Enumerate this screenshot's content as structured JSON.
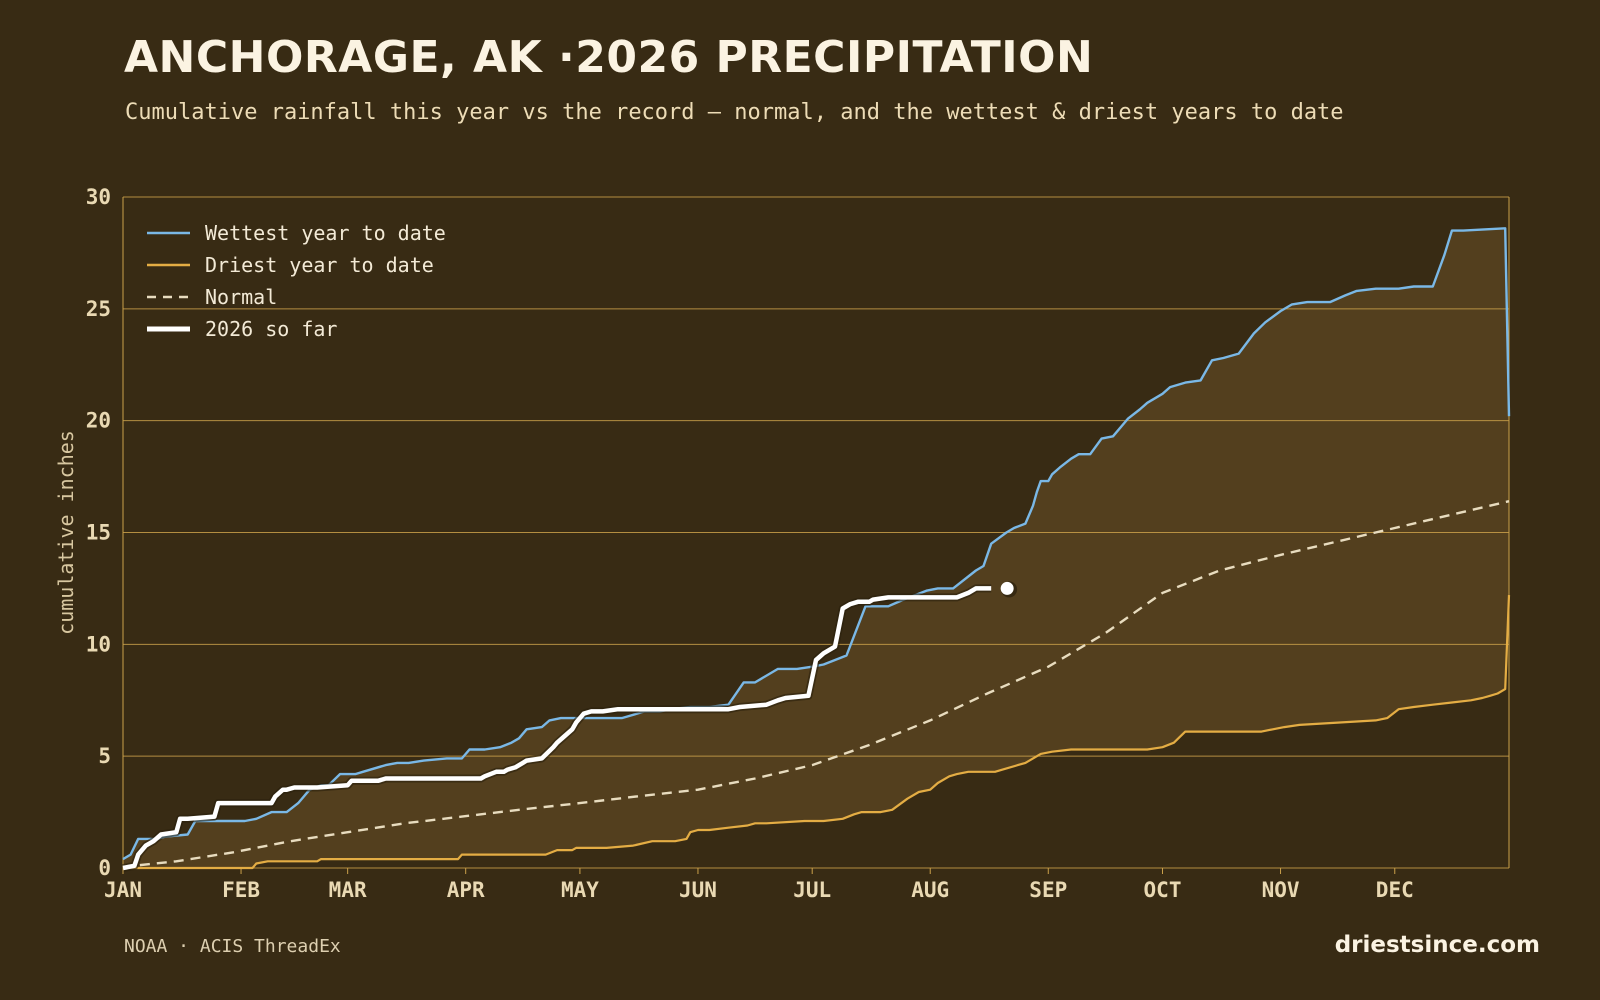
{
  "header": {
    "title": "ANCHORAGE, AK ·2026 PRECIPITATION",
    "subtitle": "Cumulative rainfall this year vs the record — normal, and the wettest & driest years to date"
  },
  "footer": {
    "source": "NOAA · ACIS ThreadEx",
    "brand": "driestsince.com"
  },
  "colors": {
    "background": "#382b14",
    "band_fill": "#533f1e",
    "grid": "#caa04a",
    "wettest": "#7ab8e6",
    "driest": "#e4ad44",
    "normal": "#e8dcbf",
    "current": "#ffffff"
  },
  "chart_data": {
    "type": "line",
    "title": "ANCHORAGE, AK ·2026 PRECIPITATION",
    "subtitle": "Cumulative rainfall this year vs the record — normal, and the wettest & driest years to date",
    "xlabel": "",
    "ylabel": "cumulative inches",
    "x_unit": "day of year",
    "xlim": [
      1,
      365
    ],
    "ylim": [
      0,
      30
    ],
    "yticks": [
      0,
      5,
      10,
      15,
      20,
      25,
      30
    ],
    "month_ticks": [
      {
        "label": "JAN",
        "day": 1
      },
      {
        "label": "FEB",
        "day": 32
      },
      {
        "label": "MAR",
        "day": 60
      },
      {
        "label": "APR",
        "day": 91
      },
      {
        "label": "MAY",
        "day": 121
      },
      {
        "label": "JUN",
        "day": 152
      },
      {
        "label": "JUL",
        "day": 182
      },
      {
        "label": "AUG",
        "day": 213
      },
      {
        "label": "SEP",
        "day": 244
      },
      {
        "label": "OCT",
        "day": 274
      },
      {
        "label": "NOV",
        "day": 305
      },
      {
        "label": "DEC",
        "day": 335
      }
    ],
    "grid": true,
    "legend_position": "top-left",
    "series": [
      {
        "name": "Wettest year to date",
        "style": "solid",
        "x": [
          1,
          3,
          5,
          10,
          12,
          18,
          20,
          24,
          28,
          33,
          36,
          40,
          44,
          47,
          50,
          53,
          55,
          58,
          60,
          62,
          64,
          70,
          73,
          76,
          80,
          86,
          90,
          92,
          96,
          100,
          103,
          105,
          107,
          111,
          113,
          116,
          121,
          125,
          132,
          138,
          142,
          145,
          150,
          155,
          160,
          164,
          167,
          170,
          173,
          178,
          182,
          185,
          191,
          196,
          198,
          202,
          206,
          212,
          215,
          219,
          225,
          227,
          229,
          233,
          235,
          238,
          240,
          241,
          242,
          244,
          245,
          247,
          250,
          252,
          255,
          258,
          261,
          265,
          268,
          270,
          272,
          274,
          276,
          280,
          284,
          287,
          290,
          294,
          298,
          301,
          305,
          308,
          312,
          318,
          322,
          325,
          330,
          336,
          340,
          345,
          348,
          350,
          353,
          364,
          365
        ],
        "y": [
          0.4,
          0.6,
          1.3,
          1.3,
          1.4,
          1.5,
          2.1,
          2.1,
          2.1,
          2.1,
          2.2,
          2.5,
          2.5,
          2.9,
          3.5,
          3.7,
          3.7,
          4.2,
          4.2,
          4.2,
          4.3,
          4.6,
          4.7,
          4.7,
          4.8,
          4.9,
          4.9,
          5.3,
          5.3,
          5.4,
          5.6,
          5.8,
          6.2,
          6.3,
          6.6,
          6.7,
          6.7,
          6.7,
          6.7,
          7.0,
          7.0,
          7.1,
          7.2,
          7.2,
          7.3,
          8.3,
          8.3,
          8.6,
          8.9,
          8.9,
          9.0,
          9.1,
          9.5,
          11.7,
          11.7,
          11.7,
          12.0,
          12.4,
          12.5,
          12.5,
          13.3,
          13.5,
          14.5,
          15.0,
          15.2,
          15.4,
          16.2,
          16.8,
          17.3,
          17.3,
          17.6,
          17.9,
          18.3,
          18.5,
          18.5,
          19.2,
          19.3,
          20.1,
          20.5,
          20.8,
          21.0,
          21.2,
          21.5,
          21.7,
          21.8,
          22.7,
          22.8,
          23.0,
          23.9,
          24.4,
          24.9,
          25.2,
          25.3,
          25.3,
          25.6,
          25.8,
          25.9,
          25.9,
          26.0,
          26.0,
          27.4,
          28.5,
          28.5,
          28.6,
          20.2
        ]
      },
      {
        "name": "Driest year to date",
        "style": "solid",
        "x": [
          1,
          35,
          36,
          39,
          52,
          53,
          70,
          89,
          90,
          92,
          100,
          103,
          112,
          115,
          119,
          120,
          122,
          128,
          135,
          140,
          146,
          149,
          150,
          152,
          155,
          160,
          165,
          167,
          170,
          180,
          185,
          190,
          193,
          195,
          200,
          203,
          207,
          210,
          213,
          215,
          218,
          220,
          223,
          226,
          230,
          232,
          236,
          238,
          242,
          245,
          250,
          260,
          270,
          274,
          277,
          280,
          282,
          290,
          300,
          303,
          306,
          310,
          320,
          330,
          333,
          336,
          340,
          345,
          350,
          355,
          358,
          360,
          362,
          364,
          365
        ],
        "y": [
          0.0,
          0.0,
          0.2,
          0.3,
          0.3,
          0.4,
          0.4,
          0.4,
          0.6,
          0.6,
          0.6,
          0.6,
          0.6,
          0.8,
          0.8,
          0.9,
          0.9,
          0.9,
          1.0,
          1.2,
          1.2,
          1.3,
          1.6,
          1.7,
          1.7,
          1.8,
          1.9,
          2.0,
          2.0,
          2.1,
          2.1,
          2.2,
          2.4,
          2.5,
          2.5,
          2.6,
          3.1,
          3.4,
          3.5,
          3.8,
          4.1,
          4.2,
          4.3,
          4.3,
          4.3,
          4.4,
          4.6,
          4.7,
          5.1,
          5.2,
          5.3,
          5.3,
          5.3,
          5.4,
          5.6,
          6.1,
          6.1,
          6.1,
          6.1,
          6.2,
          6.3,
          6.4,
          6.5,
          6.6,
          6.7,
          7.1,
          7.2,
          7.3,
          7.4,
          7.5,
          7.6,
          7.7,
          7.8,
          8.0,
          12.2
        ]
      },
      {
        "name": "Normal",
        "style": "dashed",
        "x": [
          1,
          15,
          30,
          45,
          60,
          75,
          90,
          105,
          121,
          136,
          152,
          167,
          182,
          197,
          213,
          228,
          244,
          259,
          274,
          289,
          305,
          320,
          335,
          350,
          365
        ],
        "y": [
          0.05,
          0.3,
          0.7,
          1.2,
          1.6,
          2.0,
          2.3,
          2.6,
          2.9,
          3.2,
          3.5,
          4.0,
          4.6,
          5.5,
          6.6,
          7.8,
          9.0,
          10.5,
          12.3,
          13.3,
          14.0,
          14.6,
          15.2,
          15.8,
          16.4
        ]
      },
      {
        "name": "2026 so far",
        "style": "bold",
        "x": [
          1,
          4,
          5,
          7,
          9,
          11,
          15,
          16,
          18,
          25,
          26,
          40,
          41,
          43,
          44,
          46,
          52,
          60,
          61,
          68,
          70,
          80,
          85,
          95,
          96,
          99,
          101,
          102,
          104,
          106,
          107,
          111,
          114,
          115,
          117,
          119,
          120,
          122,
          124,
          127,
          131,
          134,
          136,
          145,
          160,
          163,
          170,
          173,
          175,
          181,
          183,
          185,
          188,
          190,
          192,
          194,
          195,
          197,
          198,
          202,
          210,
          215,
          220,
          223,
          225,
          229
        ],
        "y": [
          0.0,
          0.1,
          0.6,
          1.0,
          1.2,
          1.5,
          1.6,
          2.2,
          2.2,
          2.3,
          2.9,
          2.9,
          3.2,
          3.5,
          3.5,
          3.6,
          3.6,
          3.7,
          3.9,
          3.9,
          4.0,
          4.0,
          4.0,
          4.0,
          4.1,
          4.3,
          4.3,
          4.4,
          4.5,
          4.7,
          4.8,
          4.9,
          5.4,
          5.6,
          5.9,
          6.2,
          6.5,
          6.9,
          7.0,
          7.0,
          7.1,
          7.1,
          7.1,
          7.1,
          7.1,
          7.2,
          7.3,
          7.5,
          7.6,
          7.7,
          9.3,
          9.6,
          9.9,
          11.6,
          11.8,
          11.9,
          11.9,
          11.9,
          12.0,
          12.1,
          12.1,
          12.1,
          12.1,
          12.3,
          12.5,
          12.5
        ]
      }
    ]
  }
}
